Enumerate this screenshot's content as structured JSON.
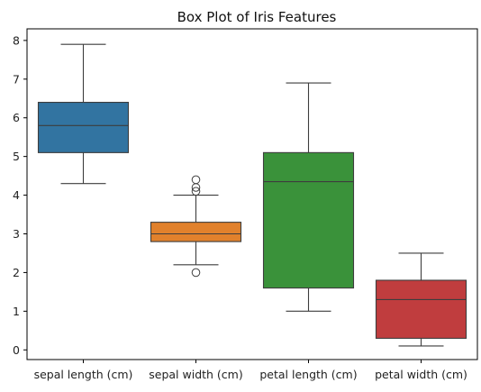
{
  "chart_data": {
    "type": "box",
    "title": "Box Plot of Iris Features",
    "xlabel": "",
    "ylabel": "",
    "ylim": [
      -0.25,
      8.3
    ],
    "yticks": [
      0,
      1,
      2,
      3,
      4,
      5,
      6,
      7,
      8
    ],
    "grid": false,
    "categories": [
      "sepal length (cm)",
      "sepal width (cm)",
      "petal length (cm)",
      "petal width (cm)"
    ],
    "boxes": [
      {
        "category": "sepal length (cm)",
        "color": "#3274a1",
        "whisker_low": 4.3,
        "q1": 5.1,
        "median": 5.8,
        "q3": 6.4,
        "whisker_high": 7.9,
        "outliers": []
      },
      {
        "category": "sepal width (cm)",
        "color": "#e1812c",
        "whisker_low": 2.2,
        "q1": 2.8,
        "median": 3.0,
        "q3": 3.3,
        "whisker_high": 4.0,
        "outliers": [
          2.0,
          4.1,
          4.2,
          4.4
        ]
      },
      {
        "category": "petal length (cm)",
        "color": "#3a923a",
        "whisker_low": 1.0,
        "q1": 1.6,
        "median": 4.35,
        "q3": 5.1,
        "whisker_high": 6.9,
        "outliers": []
      },
      {
        "category": "petal width (cm)",
        "color": "#c03d3e",
        "whisker_low": 0.1,
        "q1": 0.3,
        "median": 1.3,
        "q3": 1.8,
        "whisker_high": 2.5,
        "outliers": []
      }
    ]
  }
}
